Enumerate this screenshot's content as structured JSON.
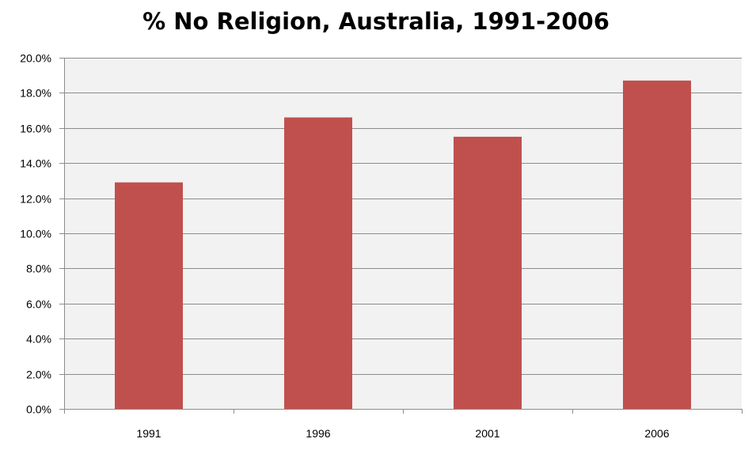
{
  "colors": {
    "bar": "#C0504D",
    "plot_bg": "#F2F2F2",
    "grid": "#8C8C8C",
    "axis": "#8C8C8C"
  },
  "chart_data": {
    "type": "bar",
    "title": "% No Religion, Australia, 1991-2006",
    "xlabel": "",
    "ylabel": "",
    "categories": [
      "1991",
      "1996",
      "2001",
      "2006"
    ],
    "values": [
      12.9,
      16.6,
      15.5,
      18.7
    ],
    "ylim": [
      0,
      20
    ],
    "ytick_values": [
      0,
      2,
      4,
      6,
      8,
      10,
      12,
      14,
      16,
      18,
      20
    ],
    "ytick_labels": [
      "0.0%",
      "2.0%",
      "4.0%",
      "6.0%",
      "8.0%",
      "10.0%",
      "12.0%",
      "14.0%",
      "16.0%",
      "18.0%",
      "20.0%"
    ],
    "grid": true,
    "legend": "none"
  }
}
